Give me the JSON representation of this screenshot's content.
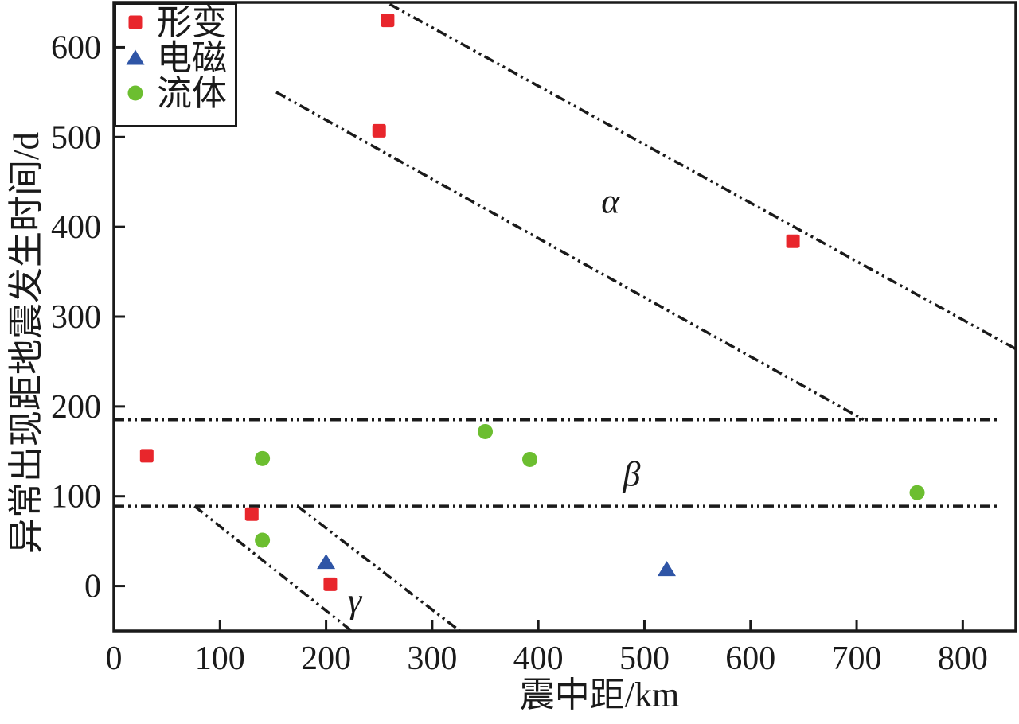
{
  "chart_data": {
    "type": "scatter",
    "title": "",
    "xlabel": "震中距/km",
    "ylabel": "异常出现距地震发生时间/d",
    "xlim": [
      0,
      850
    ],
    "ylim": [
      -50,
      650
    ],
    "xticks": [
      0,
      100,
      200,
      300,
      400,
      500,
      600,
      700,
      800
    ],
    "yticks": [
      0,
      100,
      200,
      300,
      400,
      500,
      600
    ],
    "grid": false,
    "legend_position": "top-left",
    "axis_color": "#1a1a1a",
    "series": [
      {
        "name": "形变",
        "marker": "square",
        "color": "#e8262c",
        "points": [
          [
            31,
            145
          ],
          [
            130,
            80
          ],
          [
            204,
            2
          ],
          [
            250,
            507
          ],
          [
            258,
            630
          ],
          [
            640,
            384
          ]
        ]
      },
      {
        "name": "电磁",
        "marker": "triangle",
        "color": "#2f55a6",
        "points": [
          [
            200,
            27
          ],
          [
            521,
            19
          ]
        ]
      },
      {
        "name": "流体",
        "marker": "circle",
        "color": "#6cbe30",
        "points": [
          [
            140,
            142
          ],
          [
            140,
            51
          ],
          [
            350,
            172
          ],
          [
            392,
            141
          ],
          [
            757,
            104
          ]
        ]
      }
    ],
    "boundary_lines": [
      {
        "id": "alpha-upper",
        "style": "dash-dot-dot",
        "x1": 260,
        "y1": 648,
        "x2": 850,
        "y2": 264
      },
      {
        "id": "alpha-lower",
        "style": "dash-dot-dot",
        "x1": 153,
        "y1": 550,
        "x2": 707,
        "y2": 185
      },
      {
        "id": "beta-upper",
        "style": "dash-dot-dot",
        "x1": 0,
        "y1": 185,
        "x2": 833,
        "y2": 185
      },
      {
        "id": "beta-lower",
        "style": "dash-dot-dot",
        "x1": 0,
        "y1": 89,
        "x2": 833,
        "y2": 89
      },
      {
        "id": "gamma-left",
        "style": "dash-dot-dot",
        "x1": 76,
        "y1": 89,
        "x2": 224,
        "y2": -50
      },
      {
        "id": "gamma-right",
        "style": "dash-dot-dot",
        "x1": 173,
        "y1": 89,
        "x2": 326,
        "y2": -50
      }
    ],
    "region_labels": [
      {
        "text": "α",
        "x": 468,
        "y": 429
      },
      {
        "text": "β",
        "x": 488,
        "y": 125
      },
      {
        "text": "γ",
        "x": 227,
        "y": -16
      }
    ]
  }
}
